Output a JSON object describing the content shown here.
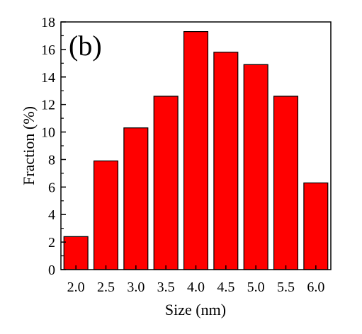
{
  "chart_data": {
    "type": "bar",
    "panel_label": "(b)",
    "title": "",
    "xlabel": "Size (nm)",
    "ylabel": "Fraction (%)",
    "categories": [
      "2.0",
      "2.5",
      "3.0",
      "3.5",
      "4.0",
      "4.5",
      "5.0",
      "5.5",
      "6.0"
    ],
    "x": [
      2.0,
      2.5,
      3.0,
      3.5,
      4.0,
      4.5,
      5.0,
      5.5,
      6.0
    ],
    "values": [
      2.4,
      7.9,
      10.3,
      12.6,
      17.3,
      15.8,
      14.9,
      12.6,
      6.3
    ],
    "xlim": [
      1.75,
      6.25
    ],
    "ylim": [
      0,
      18
    ],
    "yticks": [
      "0",
      "2",
      "4",
      "6",
      "8",
      "10",
      "12",
      "14",
      "16",
      "18"
    ],
    "ytick_values": [
      0,
      2,
      4,
      6,
      8,
      10,
      12,
      14,
      16,
      18
    ],
    "grid": false,
    "legend": "none",
    "colors": {
      "bar_fill": "#ff0000",
      "bar_stroke": "#000000",
      "axis": "#000000"
    }
  }
}
